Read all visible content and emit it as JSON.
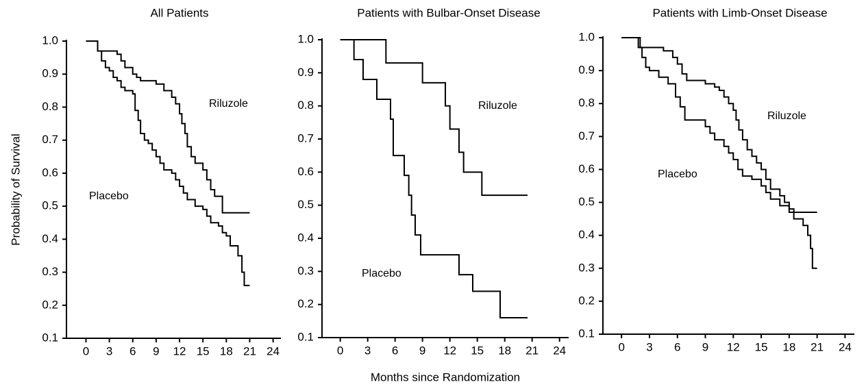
{
  "chart_data": [
    {
      "type": "line",
      "step": true,
      "title": "All Patients",
      "ylabel": "Probability of Survival",
      "xlim": [
        -2.5,
        25
      ],
      "ylim": [
        0.1,
        1.0
      ],
      "xticks": [
        0,
        3,
        6,
        9,
        12,
        15,
        18,
        21,
        24
      ],
      "yticks": [
        0.1,
        0.2,
        0.3,
        0.4,
        0.5,
        0.6,
        0.7,
        0.8,
        0.9,
        {
          "value": 1,
          "label": "1.0"
        }
      ],
      "series": [
        {
          "name": "Riluzole",
          "color": "#000000",
          "x": [
            0,
            1.5,
            4,
            4.5,
            5,
            6,
            6.5,
            7,
            9,
            10,
            11,
            11.5,
            12,
            12.3,
            12.7,
            13,
            13.5,
            14,
            15,
            15.5,
            16,
            16.5,
            17.5,
            21
          ],
          "values": [
            1,
            0.97,
            0.96,
            0.94,
            0.92,
            0.9,
            0.89,
            0.88,
            0.87,
            0.85,
            0.83,
            0.81,
            0.78,
            0.75,
            0.72,
            0.68,
            0.65,
            0.63,
            0.61,
            0.58,
            0.55,
            0.53,
            0.48,
            0.48
          ]
        },
        {
          "name": "Placebo",
          "color": "#000000",
          "x": [
            0,
            1.5,
            2,
            2.5,
            3,
            3.5,
            4,
            4.5,
            5,
            6,
            6.3,
            6.7,
            7,
            7.5,
            8,
            8.5,
            9,
            9.5,
            10,
            11,
            11.5,
            12,
            12.5,
            13,
            14,
            15,
            15.5,
            16,
            17,
            17.5,
            18,
            18.5,
            19.5,
            20,
            20.3,
            21
          ],
          "values": [
            1,
            0.97,
            0.94,
            0.92,
            0.91,
            0.89,
            0.88,
            0.86,
            0.85,
            0.84,
            0.79,
            0.76,
            0.72,
            0.7,
            0.69,
            0.67,
            0.65,
            0.63,
            0.61,
            0.6,
            0.58,
            0.56,
            0.54,
            0.52,
            0.5,
            0.49,
            0.47,
            0.45,
            0.44,
            0.42,
            0.41,
            0.38,
            0.35,
            0.3,
            0.26,
            0.26
          ]
        }
      ]
    },
    {
      "type": "line",
      "step": true,
      "title": "Patients with Bulbar-Onset Disease",
      "xlabel": "Months since Randomization",
      "xlim": [
        -2,
        25
      ],
      "ylim": [
        0.1,
        1.0
      ],
      "xticks": [
        0,
        3,
        6,
        9,
        12,
        15,
        18,
        21,
        24
      ],
      "yticks": [
        0.1,
        0.2,
        0.3,
        0.4,
        0.5,
        0.6,
        0.7,
        0.8,
        0.9,
        {
          "value": 1,
          "label": "1.0"
        }
      ],
      "series": [
        {
          "name": "Riluzole",
          "color": "#000000",
          "x": [
            0,
            5,
            9,
            11.5,
            12,
            13,
            13.5,
            15.5,
            20.5
          ],
          "values": [
            1,
            0.93,
            0.87,
            0.8,
            0.73,
            0.66,
            0.6,
            0.53,
            0.53
          ]
        },
        {
          "name": "Placebo",
          "color": "#000000",
          "x": [
            0,
            1.5,
            2.5,
            4,
            5.5,
            5.8,
            7,
            7.5,
            7.8,
            8.2,
            8.8,
            13,
            14.5,
            17.5,
            20.5
          ],
          "values": [
            1,
            0.94,
            0.88,
            0.82,
            0.76,
            0.65,
            0.59,
            0.53,
            0.47,
            0.41,
            0.35,
            0.29,
            0.24,
            0.16,
            0.16
          ]
        }
      ]
    },
    {
      "type": "line",
      "step": true,
      "title": "Patients with Limb-Onset Disease",
      "xlim": [
        -2,
        25
      ],
      "ylim": [
        0.1,
        1.0
      ],
      "xticks": [
        0,
        3,
        6,
        9,
        12,
        15,
        18,
        21,
        24
      ],
      "yticks": [
        0.1,
        0.2,
        0.3,
        0.4,
        0.5,
        0.6,
        0.7,
        0.8,
        0.9,
        {
          "value": 1,
          "label": "1.0"
        }
      ],
      "series": [
        {
          "name": "Riluzole",
          "color": "#000000",
          "x": [
            0,
            2,
            4.5,
            5.5,
            6,
            6.5,
            7,
            9,
            10,
            10.5,
            11,
            11.5,
            12,
            12.3,
            12.6,
            13,
            13.5,
            14,
            14.5,
            15,
            15.5,
            16,
            17,
            17.5,
            18,
            18.5,
            21
          ],
          "values": [
            1,
            0.97,
            0.96,
            0.94,
            0.92,
            0.89,
            0.87,
            0.86,
            0.85,
            0.84,
            0.82,
            0.8,
            0.78,
            0.75,
            0.72,
            0.69,
            0.66,
            0.64,
            0.62,
            0.6,
            0.57,
            0.54,
            0.52,
            0.5,
            0.48,
            0.47,
            0.47
          ]
        },
        {
          "name": "Placebo",
          "color": "#000000",
          "x": [
            0,
            1.8,
            2.2,
            2.6,
            3,
            4,
            5,
            5.8,
            6.3,
            6.8,
            9,
            9.5,
            10,
            11,
            11.5,
            12,
            12.5,
            13,
            14,
            15,
            15.5,
            16,
            17,
            18,
            18.5,
            19.5,
            20,
            20.3,
            20.5,
            21
          ],
          "values": [
            1,
            0.97,
            0.94,
            0.91,
            0.9,
            0.88,
            0.86,
            0.82,
            0.79,
            0.75,
            0.73,
            0.71,
            0.69,
            0.67,
            0.65,
            0.63,
            0.6,
            0.58,
            0.57,
            0.55,
            0.53,
            0.51,
            0.49,
            0.47,
            0.45,
            0.43,
            0.4,
            0.36,
            0.3,
            0.3
          ]
        }
      ]
    }
  ]
}
